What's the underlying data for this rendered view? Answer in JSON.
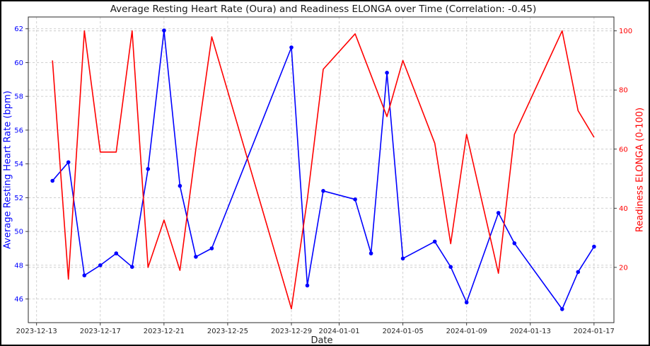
{
  "figure": {
    "title": "Average Resting Heart Rate (Oura) and Readiness ELONGA over Time (Correlation: -0.45)",
    "correlation": "-0.45"
  },
  "colors": {
    "heart_rate": "#0000ff",
    "readiness": "#ff0000",
    "grid": "#cccccc",
    "axis_text": "#262626",
    "spine": "#2a2a2a"
  },
  "chart_data": {
    "type": "line",
    "title": "Average Resting Heart Rate (Oura) and Readiness ELONGA over Time (Correlation: -0.45)",
    "xlabel": "Date",
    "ylabel_left": "Average Resting Heart Rate (bpm)",
    "ylabel_right": "Readiness ELONGA (0-100)",
    "grid": true,
    "legend": "none",
    "x": [
      "2023-12-14",
      "2023-12-15",
      "2023-12-16",
      "2023-12-17",
      "2023-12-18",
      "2023-12-19",
      "2023-12-20",
      "2023-12-21",
      "2023-12-22",
      "2023-12-23",
      "2023-12-24",
      "2023-12-29",
      "2023-12-30",
      "2023-12-31",
      "2024-01-02",
      "2024-01-03",
      "2024-01-04",
      "2024-01-05",
      "2024-01-07",
      "2024-01-08",
      "2024-01-09",
      "2024-01-11",
      "2024-01-12",
      "2024-01-15",
      "2024-01-16",
      "2024-01-17"
    ],
    "series": [
      {
        "name": "Average Resting Heart Rate (Oura)",
        "axis": "left",
        "color": "#0000ff",
        "marker": "circle",
        "values": [
          53.0,
          54.1,
          47.4,
          48.0,
          48.7,
          47.9,
          53.7,
          61.9,
          52.7,
          48.5,
          49.0,
          60.9,
          46.8,
          52.4,
          51.9,
          48.7,
          59.4,
          48.4,
          49.4,
          47.9,
          45.8,
          51.1,
          49.3,
          45.4,
          47.6,
          49.1
        ]
      },
      {
        "name": "Readiness ELONGA",
        "axis": "right",
        "color": "#ff0000",
        "marker": "none",
        "values": [
          90,
          16,
          100,
          59,
          59,
          100,
          20,
          36,
          19,
          60,
          98,
          6,
          43,
          87,
          99,
          85,
          71,
          90,
          62,
          28,
          65,
          18,
          65,
          100,
          73,
          64
        ]
      }
    ],
    "x_ticks": [
      "2023-12-13",
      "2023-12-17",
      "2023-12-21",
      "2023-12-25",
      "2023-12-29",
      "2024-01-01",
      "2024-01-05",
      "2024-01-09",
      "2024-01-13",
      "2024-01-17"
    ],
    "y_ticks_left": [
      46,
      48,
      50,
      52,
      54,
      56,
      58,
      60,
      62
    ],
    "y_ticks_right": [
      20,
      40,
      60,
      80,
      100
    ],
    "ylim_left": [
      44.6,
      62.7
    ],
    "ylim_right": [
      1.3,
      104.7
    ],
    "xlim_days": [
      -0.52,
      36.25
    ]
  }
}
